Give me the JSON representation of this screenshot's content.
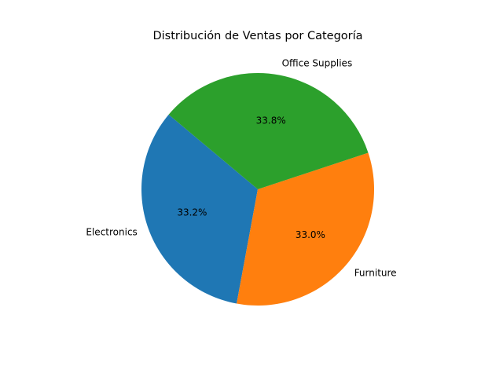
{
  "chart_data": {
    "type": "pie",
    "title": "Distribución de Ventas por Categoría",
    "categories": [
      "Electronics",
      "Furniture",
      "Office Supplies"
    ],
    "values": [
      33.2,
      33.0,
      33.8
    ],
    "percent_labels": [
      "33.2%",
      "33.0%",
      "33.8%"
    ],
    "colors": [
      "#1f77b4",
      "#ff7f0e",
      "#2ca02c"
    ],
    "start_angle_deg": 140,
    "direction": "counterclockwise",
    "legend": "none"
  }
}
